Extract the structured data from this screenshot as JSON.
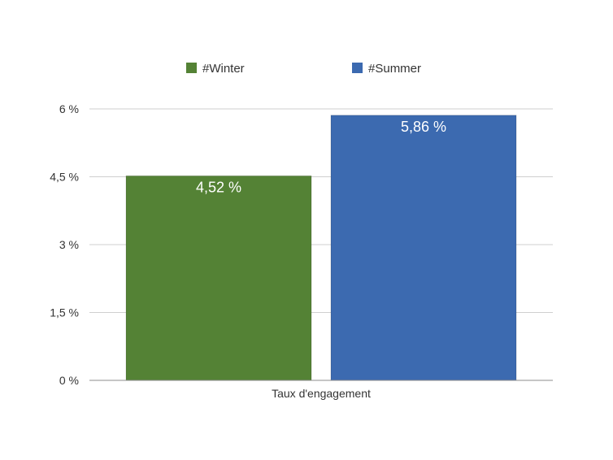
{
  "chart_data": {
    "type": "bar",
    "categories": [
      "Taux d'engagement"
    ],
    "series": [
      {
        "name": "#Winter",
        "values": [
          4.52
        ],
        "label": "4,52 %",
        "color": "#548235"
      },
      {
        "name": "#Summer",
        "values": [
          5.86
        ],
        "label": "5,86 %",
        "color": "#3c6ab0"
      }
    ],
    "ylim": [
      0,
      6
    ],
    "yticks": [
      {
        "value": 0,
        "label": "0 %"
      },
      {
        "value": 1.5,
        "label": "1,5 %"
      },
      {
        "value": 3,
        "label": "3 %"
      },
      {
        "value": 4.5,
        "label": "4,5 %"
      },
      {
        "value": 6,
        "label": "6 %"
      }
    ],
    "grid": true,
    "legend_position": "top",
    "grid_color": "#cfcfcf",
    "axis_color": "#8c8c8c",
    "text_color": "#333333",
    "data_label_color": "#ffffff"
  }
}
